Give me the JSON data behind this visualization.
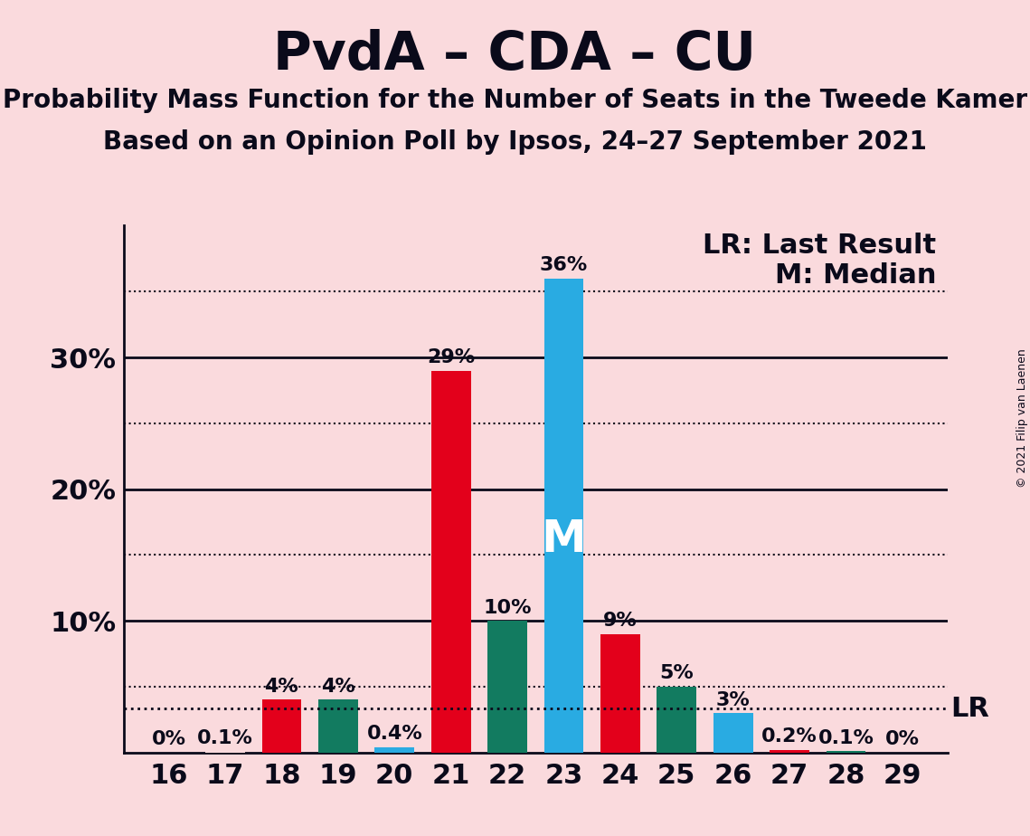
{
  "title": "PvdA – CDA – CU",
  "subtitle1": "Probability Mass Function for the Number of Seats in the Tweede Kamer",
  "subtitle2": "Based on an Opinion Poll by Ipsos, 24–27 September 2021",
  "copyright": "© 2021 Filip van Laenen",
  "seats": [
    16,
    17,
    18,
    19,
    20,
    21,
    22,
    23,
    24,
    25,
    26,
    27,
    28,
    29
  ],
  "values": [
    0.0,
    0.1,
    4.0,
    4.0,
    0.4,
    29.0,
    10.0,
    36.0,
    9.0,
    5.0,
    3.0,
    0.2,
    0.1,
    0.0
  ],
  "colors": [
    "#FADADD",
    "#FADADD",
    "#E3001B",
    "#127B60",
    "#29ABE2",
    "#E3001B",
    "#127B60",
    "#29ABE2",
    "#E3001B",
    "#127B60",
    "#29ABE2",
    "#E3001B",
    "#127B60",
    "#29ABE2"
  ],
  "labels": [
    "0%",
    "0.1%",
    "4%",
    "4%",
    "0.4%",
    "29%",
    "10%",
    "36%",
    "9%",
    "5%",
    "3%",
    "0.2%",
    "0.1%",
    "0%"
  ],
  "median_seat": 23,
  "lr_value": 3.33,
  "background_color": "#FADADD",
  "ylim": [
    0,
    40
  ],
  "title_fontsize": 42,
  "subtitle_fontsize": 20,
  "label_fontsize": 16,
  "axis_fontsize": 22,
  "legend_fontsize": 22
}
